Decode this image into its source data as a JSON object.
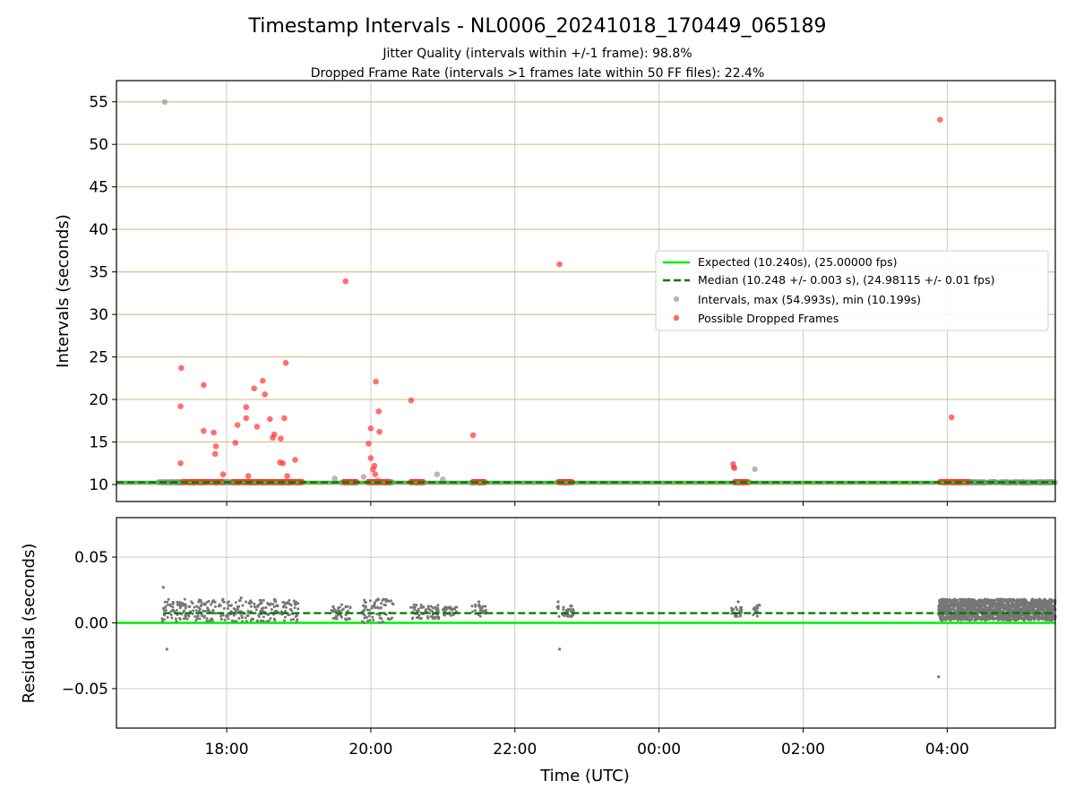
{
  "figure": {
    "title": "Timestamp Intervals - NL0006_20241018_170449_065189",
    "subtitle_1": "Jitter Quality (intervals within +/-1 frame): 98.8%",
    "subtitle_2": "Dropped Frame Rate (intervals >1 frames late within 50 FF files): 22.4%"
  },
  "colors": {
    "expected": "#00ee00",
    "median": "#007700",
    "intervals": "#999999",
    "dropped": "#ff3333",
    "gold_grid": "#d8c08c",
    "grey_grid": "#cccccc",
    "residual_points": "#777777"
  },
  "chart_data": [
    {
      "type": "scatter",
      "ylabel": "Intervals (seconds)",
      "xlim": [
        16.47,
        29.5
      ],
      "ylim": [
        8,
        57.5
      ],
      "yticks": [
        10,
        15,
        20,
        25,
        30,
        35,
        40,
        45,
        50,
        55
      ],
      "ytick_labels": [
        "10",
        "15",
        "20",
        "25",
        "30",
        "35",
        "40",
        "45",
        "50",
        "55"
      ],
      "xticks": [
        18,
        20,
        22,
        24,
        26,
        28
      ],
      "grid": "on",
      "legend_position": "center-right",
      "legend": {
        "expected": "Expected (10.240s), (25.00000 fps)",
        "median": "Median (10.248 +/- 0.003 s), (24.98115 +/- 0.01 fps)",
        "intervals": "Intervals, max (54.993s), min (10.199s)",
        "dropped": "Possible Dropped Frames"
      },
      "expected_value": 10.24,
      "median_value": 10.248,
      "intervals_outliers": [
        [
          17.14,
          54.99
        ],
        [
          19.5,
          10.7
        ],
        [
          19.9,
          10.9
        ],
        [
          20.1,
          10.5
        ],
        [
          20.92,
          11.2
        ],
        [
          21.0,
          10.6
        ],
        [
          25.33,
          11.8
        ],
        [
          25.05,
          11.9
        ]
      ],
      "dense_bands": [
        [
          17.05,
          17.45
        ],
        [
          17.45,
          17.75
        ],
        [
          17.8,
          18.1
        ],
        [
          18.1,
          18.3
        ],
        [
          18.3,
          18.6
        ],
        [
          18.6,
          18.9
        ],
        [
          18.9,
          19.05
        ],
        [
          19.6,
          19.8
        ],
        [
          19.95,
          20.3
        ],
        [
          20.55,
          20.75
        ],
        [
          21.4,
          21.6
        ],
        [
          22.6,
          22.8
        ],
        [
          25.05,
          25.25
        ],
        [
          27.9,
          28.3
        ],
        [
          28.3,
          29.5
        ]
      ],
      "dropped_frames": {
        "bands": [
          [
            17.38,
            17.58
          ],
          [
            17.6,
            17.95
          ],
          [
            18.08,
            18.9
          ],
          [
            18.9,
            19.05
          ],
          [
            19.62,
            19.8
          ],
          [
            19.96,
            20.25
          ],
          [
            20.56,
            20.73
          ],
          [
            21.42,
            21.58
          ],
          [
            22.6,
            22.79
          ],
          [
            25.05,
            25.22
          ],
          [
            27.9,
            28.3
          ]
        ],
        "band_value": 10.3,
        "isolated": [
          [
            17.37,
            23.7
          ],
          [
            17.36,
            19.2
          ],
          [
            17.36,
            12.5
          ],
          [
            17.68,
            21.7
          ],
          [
            17.68,
            16.3
          ],
          [
            17.82,
            16.1
          ],
          [
            17.85,
            14.5
          ],
          [
            17.84,
            13.6
          ],
          [
            17.95,
            11.2
          ],
          [
            18.12,
            14.9
          ],
          [
            18.15,
            17.0
          ],
          [
            18.27,
            19.1
          ],
          [
            18.27,
            17.8
          ],
          [
            18.3,
            11.0
          ],
          [
            18.38,
            21.3
          ],
          [
            18.42,
            16.8
          ],
          [
            18.5,
            22.2
          ],
          [
            18.53,
            20.6
          ],
          [
            18.6,
            17.7
          ],
          [
            18.64,
            15.5
          ],
          [
            18.66,
            15.9
          ],
          [
            18.74,
            12.6
          ],
          [
            18.75,
            15.4
          ],
          [
            18.78,
            12.5
          ],
          [
            18.8,
            17.8
          ],
          [
            18.82,
            24.3
          ],
          [
            18.84,
            11.0
          ],
          [
            18.95,
            12.9
          ],
          [
            19.65,
            33.9
          ],
          [
            19.97,
            14.8
          ],
          [
            20.0,
            16.6
          ],
          [
            20.0,
            13.1
          ],
          [
            20.03,
            11.8
          ],
          [
            20.05,
            12.2
          ],
          [
            20.06,
            11.2
          ],
          [
            20.07,
            22.1
          ],
          [
            20.11,
            18.6
          ],
          [
            20.12,
            16.2
          ],
          [
            20.56,
            19.9
          ],
          [
            21.42,
            15.8
          ],
          [
            22.62,
            35.9
          ],
          [
            25.03,
            12.4
          ],
          [
            25.04,
            12.0
          ],
          [
            27.9,
            52.9
          ],
          [
            28.06,
            17.9
          ]
        ]
      }
    },
    {
      "type": "scatter",
      "xlabel": "Time (UTC)",
      "ylabel": "Residuals (seconds)",
      "xlim": [
        16.47,
        29.5
      ],
      "ylim": [
        -0.08,
        0.08
      ],
      "yticks": [
        -0.05,
        0.0,
        0.05
      ],
      "ytick_labels": [
        "−0.05",
        "0.00",
        "0.05"
      ],
      "xticks": [
        18,
        20,
        22,
        24,
        26,
        28
      ],
      "xtick_labels": [
        "18:00",
        "20:00",
        "22:00",
        "00:00",
        "02:00",
        "04:00"
      ],
      "grid": "on",
      "expected_residual": 0.0,
      "median_residual": 0.0074,
      "residual_outliers": [
        [
          17.12,
          0.027
        ],
        [
          17.17,
          -0.02
        ],
        [
          22.62,
          -0.02
        ],
        [
          27.88,
          -0.041
        ],
        [
          18.2,
          0.019
        ],
        [
          20.1,
          0.018
        ],
        [
          21.5,
          0.016
        ],
        [
          22.6,
          0.016
        ],
        [
          25.1,
          0.016
        ]
      ],
      "residual_regions": [
        [
          17.1,
          19.0,
          0.001,
          0.018
        ],
        [
          19.45,
          19.72,
          0.002,
          0.014
        ],
        [
          19.88,
          20.32,
          0.0,
          0.018
        ],
        [
          20.55,
          20.95,
          0.003,
          0.014
        ],
        [
          21.0,
          21.2,
          0.005,
          0.012
        ],
        [
          21.4,
          21.6,
          0.005,
          0.014
        ],
        [
          22.58,
          22.82,
          0.004,
          0.014
        ],
        [
          25.0,
          25.15,
          0.004,
          0.012
        ],
        [
          25.3,
          25.4,
          0.005,
          0.014
        ]
      ],
      "residual_dense": [
        27.88,
        29.5,
        0.002,
        0.018
      ]
    }
  ]
}
